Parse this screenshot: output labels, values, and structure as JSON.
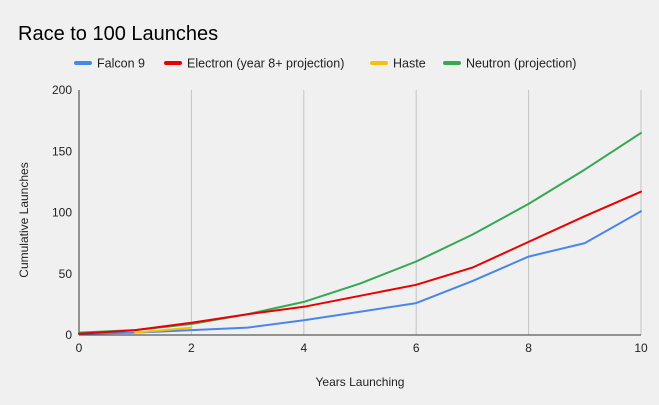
{
  "chart_data": {
    "type": "line",
    "title": "Race to 100 Launches",
    "xlabel": "Years Launching",
    "ylabel": "Cumulative Launches",
    "xlim": [
      0,
      10
    ],
    "ylim": [
      0,
      200
    ],
    "xticks": [
      0,
      2,
      4,
      6,
      8,
      10
    ],
    "yticks": [
      0,
      50,
      100,
      150,
      200
    ],
    "grid": "vertical",
    "legend_position": "top",
    "series": [
      {
        "name": "Falcon 9",
        "color": "#4a86e8",
        "x": [
          0,
          1,
          2,
          3,
          4,
          5,
          6,
          7,
          8,
          9,
          10
        ],
        "y": [
          1,
          2,
          4,
          6,
          12,
          19,
          26,
          44,
          64,
          75,
          101
        ]
      },
      {
        "name": "Electron (year 8+ projection)",
        "color": "#ea0000",
        "x": [
          0,
          1,
          2,
          3,
          4,
          5,
          6,
          7,
          8,
          9,
          10
        ],
        "y": [
          1,
          4,
          10,
          17,
          23,
          32,
          41,
          55,
          76,
          97,
          117
        ]
      },
      {
        "name": "Haste",
        "color": "#f4c20d",
        "x": [
          1,
          2
        ],
        "y": [
          2,
          6
        ]
      },
      {
        "name": "Neutron (projection)",
        "color": "#34a853",
        "x": [
          0,
          1,
          2,
          3,
          4,
          5,
          6,
          7,
          8,
          9,
          10
        ],
        "y": [
          2,
          4,
          9,
          17,
          27,
          42,
          60,
          82,
          107,
          135,
          165
        ]
      }
    ]
  }
}
